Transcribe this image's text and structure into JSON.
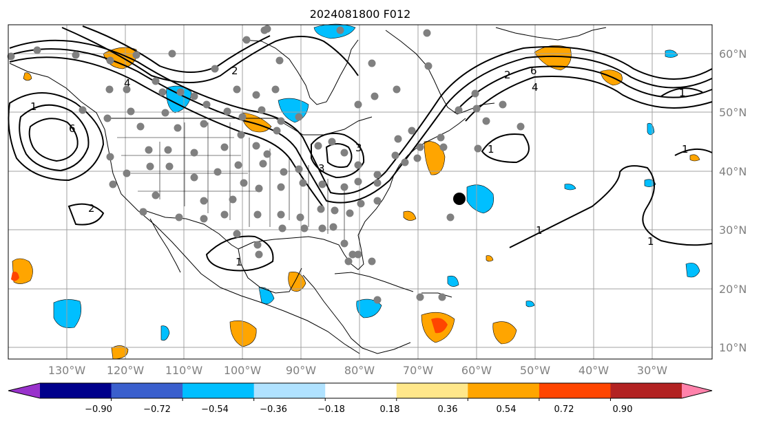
{
  "title": "2024081800 F012",
  "map": {
    "projection": "PlateCarree",
    "lon_range": [
      -141,
      -20
    ],
    "lat_range": [
      7,
      65
    ],
    "lat_labels": [
      "60°N",
      "50°N",
      "40°N",
      "30°N",
      "20°N",
      "10°N"
    ],
    "lon_labels": [
      "130°W",
      "120°W",
      "110°W",
      "100°W",
      "90°W",
      "80°W",
      "70°W",
      "60°W",
      "50°W",
      "40°W",
      "30°W"
    ],
    "contour_labels": [
      "1",
      "1",
      "1",
      "1",
      "1",
      "1",
      "1",
      "2",
      "2",
      "2",
      "3",
      "3",
      "4",
      "4",
      "6",
      "6"
    ],
    "marker": "black dot near 34°N 62°W",
    "station_points": "grey dots over North America"
  },
  "colorbar": {
    "ticks": [
      "−0.90",
      "−0.72",
      "−0.54",
      "−0.36",
      "−0.18",
      "0.18",
      "0.36",
      "0.54",
      "0.72",
      "0.90"
    ],
    "colors": [
      "#9932cc",
      "#00008b",
      "#3a5fcd",
      "#00bfff",
      "#b0e2ff",
      "#ffffff",
      "#ffe78a",
      "#ffa500",
      "#ff4500",
      "#b22222",
      "#ff82ab"
    ]
  }
}
